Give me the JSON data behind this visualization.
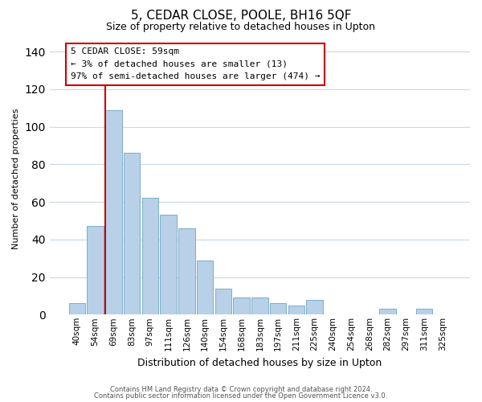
{
  "title": "5, CEDAR CLOSE, POOLE, BH16 5QF",
  "subtitle": "Size of property relative to detached houses in Upton",
  "xlabel": "Distribution of detached houses by size in Upton",
  "ylabel": "Number of detached properties",
  "bar_labels": [
    "40sqm",
    "54sqm",
    "69sqm",
    "83sqm",
    "97sqm",
    "111sqm",
    "126sqm",
    "140sqm",
    "154sqm",
    "168sqm",
    "183sqm",
    "197sqm",
    "211sqm",
    "225sqm",
    "240sqm",
    "254sqm",
    "268sqm",
    "282sqm",
    "297sqm",
    "311sqm",
    "325sqm"
  ],
  "bar_values": [
    6,
    47,
    109,
    86,
    62,
    53,
    46,
    29,
    14,
    9,
    9,
    6,
    5,
    8,
    0,
    0,
    0,
    3,
    0,
    3,
    0
  ],
  "bar_color": "#b8d0e8",
  "bar_edge_color": "#7aafc8",
  "ylim": [
    0,
    145
  ],
  "yticks": [
    0,
    20,
    40,
    60,
    80,
    100,
    120,
    140
  ],
  "property_line_label": "5 CEDAR CLOSE: 59sqm",
  "annotation_line1": "← 3% of detached houses are smaller (13)",
  "annotation_line2": "97% of semi-detached houses are larger (474) →",
  "annotation_box_color": "#ffffff",
  "annotation_box_edge_color": "#cc0000",
  "red_line_color": "#cc0000",
  "footer_line1": "Contains HM Land Registry data © Crown copyright and database right 2024.",
  "footer_line2": "Contains public sector information licensed under the Open Government Licence v3.0.",
  "background_color": "#ffffff",
  "grid_color": "#c8d8e8"
}
